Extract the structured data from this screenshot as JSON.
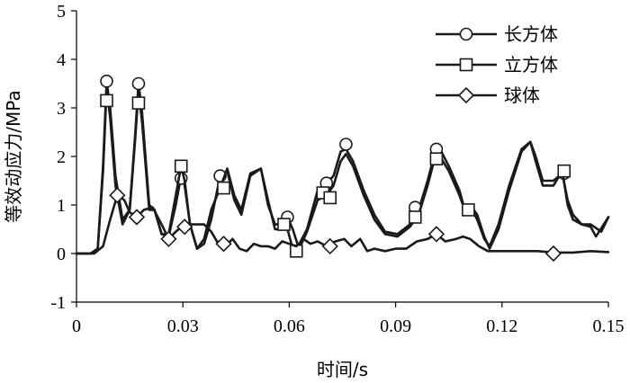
{
  "chart_data": {
    "type": "line",
    "title": "",
    "xlabel": "时间/s",
    "ylabel": "等效动应力/MPa",
    "xlim": [
      0,
      0.15
    ],
    "ylim": [
      -1,
      5
    ],
    "xticks": [
      0,
      0.03,
      0.06,
      0.09,
      0.12,
      0.15
    ],
    "xtick_labels": [
      "0",
      "0.03",
      "0.06",
      "0.09",
      "0.12",
      "0.15"
    ],
    "yticks": [
      -1,
      0,
      1,
      2,
      3,
      4,
      5
    ],
    "ytick_labels": [
      "-1",
      "0",
      "1",
      "2",
      "3",
      "4",
      "5"
    ],
    "grid": false,
    "legend_position": "top-right",
    "series": [
      {
        "name": "长方体",
        "marker": "circle",
        "color": "#1a1a1a",
        "points": [
          [
            0,
            0
          ],
          [
            0.004,
            0
          ],
          [
            0.006,
            0.1
          ],
          [
            0.0075,
            1.8
          ],
          [
            0.0085,
            3.55
          ],
          [
            0.0095,
            3.0
          ],
          [
            0.011,
            1.6
          ],
          [
            0.013,
            0.7
          ],
          [
            0.015,
            0.9
          ],
          [
            0.0165,
            2.4
          ],
          [
            0.0175,
            3.5
          ],
          [
            0.0185,
            2.9
          ],
          [
            0.0205,
            1.0
          ],
          [
            0.022,
            0.9
          ],
          [
            0.024,
            0.4
          ],
          [
            0.026,
            0.35
          ],
          [
            0.028,
            1.0
          ],
          [
            0.0295,
            1.6
          ],
          [
            0.0305,
            1.4
          ],
          [
            0.032,
            0.6
          ],
          [
            0.034,
            0.1
          ],
          [
            0.036,
            0.2
          ],
          [
            0.038,
            0.7
          ],
          [
            0.0405,
            1.6
          ],
          [
            0.0425,
            1.7
          ],
          [
            0.0445,
            1.1
          ],
          [
            0.0465,
            0.8
          ],
          [
            0.049,
            1.6
          ],
          [
            0.052,
            1.75
          ],
          [
            0.054,
            1.1
          ],
          [
            0.056,
            0.5
          ],
          [
            0.058,
            0.5
          ],
          [
            0.0595,
            0.75
          ],
          [
            0.061,
            0.5
          ],
          [
            0.0625,
            0.15
          ],
          [
            0.065,
            0.5
          ],
          [
            0.068,
            1.3
          ],
          [
            0.0705,
            1.45
          ],
          [
            0.0725,
            1.6
          ],
          [
            0.0745,
            2.1
          ],
          [
            0.076,
            2.15
          ],
          [
            0.078,
            1.9
          ],
          [
            0.081,
            1.3
          ],
          [
            0.084,
            0.8
          ],
          [
            0.087,
            0.45
          ],
          [
            0.0905,
            0.4
          ],
          [
            0.094,
            0.6
          ],
          [
            0.0965,
            0.9
          ],
          [
            0.099,
            1.5
          ],
          [
            0.101,
            2.05
          ],
          [
            0.1025,
            2.15
          ],
          [
            0.105,
            1.8
          ],
          [
            0.108,
            1.3
          ],
          [
            0.1095,
            0.9
          ],
          [
            0.1115,
            0.95
          ],
          [
            0.113,
            0.8
          ],
          [
            0.115,
            0.35
          ],
          [
            0.1165,
            0.1
          ],
          [
            0.119,
            0.5
          ],
          [
            0.122,
            1.3
          ],
          [
            0.1255,
            2.1
          ],
          [
            0.128,
            2.3
          ],
          [
            0.1295,
            2.0
          ],
          [
            0.1315,
            1.5
          ],
          [
            0.1345,
            1.5
          ],
          [
            0.137,
            1.65
          ],
          [
            0.1385,
            1.1
          ],
          [
            0.14,
            0.8
          ],
          [
            0.1425,
            0.6
          ],
          [
            0.145,
            0.6
          ],
          [
            0.148,
            0.45
          ],
          [
            0.15,
            0.75
          ]
        ],
        "marker_points": [
          [
            0.0085,
            3.55
          ],
          [
            0.0175,
            3.5
          ],
          [
            0.0295,
            1.55
          ],
          [
            0.0405,
            1.6
          ],
          [
            0.0595,
            0.75
          ],
          [
            0.0705,
            1.45
          ],
          [
            0.076,
            2.25
          ],
          [
            0.0955,
            0.95
          ],
          [
            0.1015,
            2.15
          ],
          [
            0.1375,
            1.65
          ]
        ]
      },
      {
        "name": "立方体",
        "marker": "square",
        "color": "#1a1a1a",
        "points": [
          [
            0,
            0
          ],
          [
            0.004,
            0
          ],
          [
            0.006,
            0.1
          ],
          [
            0.0075,
            1.7
          ],
          [
            0.0085,
            3.4
          ],
          [
            0.0095,
            2.8
          ],
          [
            0.011,
            1.4
          ],
          [
            0.013,
            0.6
          ],
          [
            0.015,
            0.9
          ],
          [
            0.0165,
            2.3
          ],
          [
            0.0175,
            3.35
          ],
          [
            0.0185,
            2.7
          ],
          [
            0.0205,
            0.9
          ],
          [
            0.022,
            0.9
          ],
          [
            0.024,
            0.4
          ],
          [
            0.026,
            0.4
          ],
          [
            0.028,
            1.2
          ],
          [
            0.0295,
            1.8
          ],
          [
            0.0305,
            1.5
          ],
          [
            0.032,
            0.6
          ],
          [
            0.034,
            0.1
          ],
          [
            0.036,
            0.3
          ],
          [
            0.038,
            0.9
          ],
          [
            0.0405,
            1.35
          ],
          [
            0.0425,
            1.75
          ],
          [
            0.0445,
            1.2
          ],
          [
            0.0465,
            0.9
          ],
          [
            0.049,
            1.65
          ],
          [
            0.052,
            1.75
          ],
          [
            0.054,
            1.0
          ],
          [
            0.056,
            0.6
          ],
          [
            0.0575,
            0.6
          ],
          [
            0.0595,
            0.5
          ],
          [
            0.061,
            0.1
          ],
          [
            0.0625,
            0.05
          ],
          [
            0.065,
            0.45
          ],
          [
            0.068,
            1.1
          ],
          [
            0.0705,
            1.2
          ],
          [
            0.0725,
            1.4
          ],
          [
            0.0745,
            1.9
          ],
          [
            0.076,
            2.05
          ],
          [
            0.078,
            1.8
          ],
          [
            0.081,
            1.2
          ],
          [
            0.084,
            0.7
          ],
          [
            0.087,
            0.4
          ],
          [
            0.0905,
            0.35
          ],
          [
            0.094,
            0.55
          ],
          [
            0.0965,
            0.8
          ],
          [
            0.099,
            1.4
          ],
          [
            0.101,
            1.95
          ],
          [
            0.1025,
            2.0
          ],
          [
            0.105,
            1.7
          ],
          [
            0.108,
            1.2
          ],
          [
            0.1095,
            0.9
          ],
          [
            0.1115,
            0.9
          ],
          [
            0.113,
            0.7
          ],
          [
            0.115,
            0.3
          ],
          [
            0.1165,
            0.15
          ],
          [
            0.119,
            0.6
          ],
          [
            0.122,
            1.4
          ],
          [
            0.1255,
            2.15
          ],
          [
            0.128,
            2.3
          ],
          [
            0.1295,
            1.9
          ],
          [
            0.1315,
            1.4
          ],
          [
            0.1345,
            1.4
          ],
          [
            0.137,
            1.7
          ],
          [
            0.1385,
            1.0
          ],
          [
            0.14,
            0.7
          ],
          [
            0.1425,
            0.6
          ],
          [
            0.145,
            0.55
          ],
          [
            0.1465,
            0.35
          ],
          [
            0.15,
            0.75
          ]
        ],
        "marker_points": [
          [
            0.0085,
            3.15
          ],
          [
            0.0175,
            3.1
          ],
          [
            0.0295,
            1.8
          ],
          [
            0.0415,
            1.35
          ],
          [
            0.0585,
            0.6
          ],
          [
            0.062,
            0.05
          ],
          [
            0.0695,
            1.25
          ],
          [
            0.0715,
            1.15
          ],
          [
            0.0955,
            0.75
          ],
          [
            0.1015,
            1.95
          ],
          [
            0.1105,
            0.9
          ],
          [
            0.1375,
            1.7
          ]
        ]
      },
      {
        "name": "球体",
        "marker": "diamond",
        "color": "#1a1a1a",
        "points": [
          [
            0,
            0
          ],
          [
            0.005,
            0
          ],
          [
            0.0075,
            0.15
          ],
          [
            0.0095,
            0.7
          ],
          [
            0.0115,
            1.2
          ],
          [
            0.0135,
            1.1
          ],
          [
            0.015,
            0.85
          ],
          [
            0.017,
            0.75
          ],
          [
            0.019,
            0.9
          ],
          [
            0.0215,
            0.95
          ],
          [
            0.024,
            0.6
          ],
          [
            0.026,
            0.3
          ],
          [
            0.028,
            0.45
          ],
          [
            0.0305,
            0.6
          ],
          [
            0.0335,
            0.6
          ],
          [
            0.036,
            0.6
          ],
          [
            0.038,
            0.45
          ],
          [
            0.04,
            0.2
          ],
          [
            0.042,
            0.15
          ],
          [
            0.044,
            0.3
          ],
          [
            0.046,
            0.1
          ],
          [
            0.048,
            0.05
          ],
          [
            0.05,
            0.2
          ],
          [
            0.052,
            0.15
          ],
          [
            0.054,
            0.15
          ],
          [
            0.056,
            0.1
          ],
          [
            0.058,
            0.25
          ],
          [
            0.06,
            0.2
          ],
          [
            0.062,
            0.15
          ],
          [
            0.064,
            0.3
          ],
          [
            0.066,
            0.2
          ],
          [
            0.068,
            0.25
          ],
          [
            0.0705,
            0.15
          ],
          [
            0.073,
            0.25
          ],
          [
            0.0755,
            0.3
          ],
          [
            0.0775,
            0.15
          ],
          [
            0.08,
            0.3
          ],
          [
            0.082,
            0.05
          ],
          [
            0.084,
            0.1
          ],
          [
            0.087,
            0.05
          ],
          [
            0.09,
            0.1
          ],
          [
            0.093,
            0.1
          ],
          [
            0.096,
            0.25
          ],
          [
            0.099,
            0.3
          ],
          [
            0.1015,
            0.4
          ],
          [
            0.104,
            0.25
          ],
          [
            0.107,
            0.3
          ],
          [
            0.109,
            0.35
          ],
          [
            0.111,
            0.3
          ],
          [
            0.1135,
            0.15
          ],
          [
            0.116,
            0.05
          ],
          [
            0.12,
            0.05
          ],
          [
            0.125,
            0.05
          ],
          [
            0.13,
            0.05
          ],
          [
            0.135,
            0.02
          ],
          [
            0.14,
            0.02
          ],
          [
            0.145,
            0.05
          ],
          [
            0.15,
            0.03
          ]
        ],
        "marker_points": [
          [
            0.0115,
            1.2
          ],
          [
            0.017,
            0.75
          ],
          [
            0.026,
            0.3
          ],
          [
            0.0305,
            0.55
          ],
          [
            0.0415,
            0.2
          ],
          [
            0.0715,
            0.15
          ],
          [
            0.1015,
            0.4
          ],
          [
            0.1345,
            0.0
          ]
        ]
      }
    ]
  }
}
